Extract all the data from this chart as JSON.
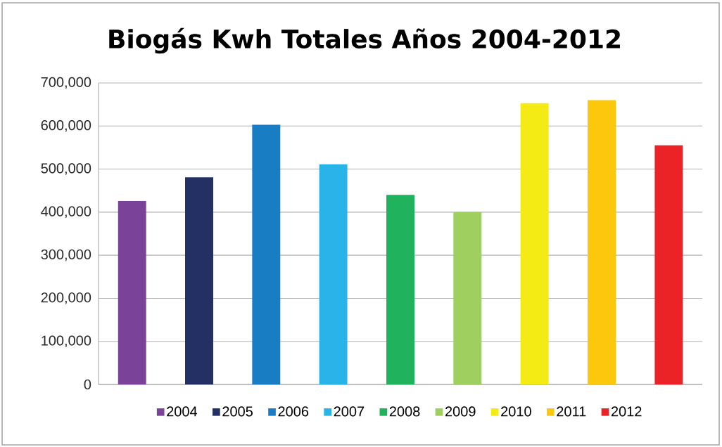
{
  "chart_data": {
    "type": "bar",
    "title": "Biogás Kwh Totales Años 2004-2012",
    "categories": [
      null,
      null,
      null,
      null,
      null,
      null,
      null,
      null,
      null
    ],
    "series": [
      {
        "name": "2004",
        "color": "#7a4399",
        "values": [
          426000,
          null,
          null,
          null,
          null,
          null,
          null,
          null,
          null
        ]
      },
      {
        "name": "2005",
        "color": "#243064",
        "values": [
          null,
          481000,
          null,
          null,
          null,
          null,
          null,
          null,
          null
        ]
      },
      {
        "name": "2006",
        "color": "#187dc2",
        "values": [
          null,
          null,
          603000,
          null,
          null,
          null,
          null,
          null,
          null
        ]
      },
      {
        "name": "2007",
        "color": "#28b4e8",
        "values": [
          null,
          null,
          null,
          511000,
          null,
          null,
          null,
          null,
          null
        ]
      },
      {
        "name": "2008",
        "color": "#20b25c",
        "values": [
          null,
          null,
          null,
          null,
          440000,
          null,
          null,
          null,
          null
        ]
      },
      {
        "name": "2009",
        "color": "#9fcf5f",
        "values": [
          null,
          null,
          null,
          null,
          null,
          400000,
          null,
          null,
          null
        ]
      },
      {
        "name": "2010",
        "color": "#f5eb14",
        "values": [
          null,
          null,
          null,
          null,
          null,
          null,
          653000,
          null,
          null
        ]
      },
      {
        "name": "2011",
        "color": "#fdc70d",
        "values": [
          null,
          null,
          null,
          null,
          null,
          null,
          null,
          660000,
          null
        ]
      },
      {
        "name": "2012",
        "color": "#ec2326",
        "values": [
          null,
          null,
          null,
          null,
          null,
          null,
          null,
          null,
          555000
        ]
      }
    ],
    "ylim": [
      0,
      700000
    ],
    "yticks": [
      0,
      {
        "value": 100000,
        "label": "100,000"
      },
      {
        "value": 200000,
        "label": "200,000"
      },
      {
        "value": 300000,
        "label": "300,000"
      },
      {
        "value": 400000,
        "label": "400,000"
      },
      {
        "value": 500000,
        "label": "500,000"
      },
      {
        "value": 600000,
        "label": "600,000"
      },
      {
        "value": 700000,
        "label": "700,000"
      }
    ],
    "grid": "y",
    "legend": "bottom"
  }
}
